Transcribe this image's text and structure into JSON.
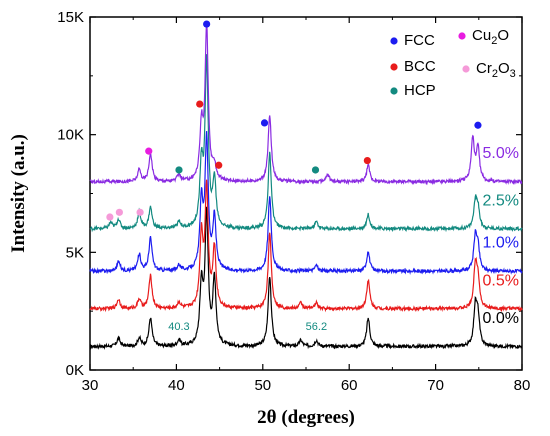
{
  "chart_data": {
    "type": "line",
    "title": "",
    "xlabel": "2θ (degrees)",
    "ylabel": "Intensity (a.u.)",
    "xlim": [
      30,
      80
    ],
    "ylim": [
      0,
      15000
    ],
    "x_ticks": [
      30,
      40,
      50,
      60,
      70,
      80
    ],
    "x_tick_labels": [
      "30",
      "40",
      "50",
      "60",
      "70",
      "80"
    ],
    "y_ticks": [
      0,
      5000,
      10000,
      15000
    ],
    "y_tick_labels": [
      "0K",
      "5K",
      "10K",
      "15K"
    ],
    "grid": false,
    "legend": {
      "placement": "top-right",
      "entries": [
        {
          "label": "FCC",
          "marker_color": "#1c1cf0"
        },
        {
          "label": "BCC",
          "marker_color": "#e81c1c"
        },
        {
          "label": "HCP",
          "marker_color": "#138a80"
        },
        {
          "label_main": "Cu",
          "label_sub": "2",
          "label_tail": "O",
          "marker_color": "#e81ce0"
        },
        {
          "label_main": "Cr",
          "label_sub": "2",
          "label_tail": "O",
          "label_sub2": "3",
          "marker_color": "#f59ad8"
        }
      ]
    },
    "series": [
      {
        "label": "0.0%",
        "color": "#000000",
        "baseline": 1000,
        "peaks": [
          [
            33.3,
            350
          ],
          [
            35.7,
            350
          ],
          [
            37.0,
            1200
          ],
          [
            40.3,
            250
          ],
          [
            42.9,
            2500
          ],
          [
            43.5,
            5500
          ],
          [
            44.4,
            2800
          ],
          [
            50.8,
            3000
          ],
          [
            54.4,
            250
          ],
          [
            56.2,
            250
          ],
          [
            62.2,
            1200
          ],
          [
            74.6,
            1600
          ],
          [
            74.9,
            1200
          ]
        ]
      },
      {
        "label": "0.5%",
        "color": "#e81c1c",
        "baseline": 2600,
        "peaks": [
          [
            33.3,
            400
          ],
          [
            35.7,
            400
          ],
          [
            37.0,
            1400
          ],
          [
            40.3,
            250
          ],
          [
            42.9,
            3000
          ],
          [
            43.5,
            5000
          ],
          [
            44.4,
            2500
          ],
          [
            50.8,
            3200
          ],
          [
            54.4,
            250
          ],
          [
            56.2,
            250
          ],
          [
            62.2,
            1200
          ],
          [
            74.6,
            1700
          ],
          [
            74.9,
            1200
          ]
        ]
      },
      {
        "label": "1.0%",
        "color": "#1c1cf0",
        "baseline": 4200,
        "peaks": [
          [
            33.3,
            400
          ],
          [
            35.7,
            700
          ],
          [
            37.0,
            1400
          ],
          [
            40.3,
            250
          ],
          [
            42.9,
            2800
          ],
          [
            43.5,
            5500
          ],
          [
            44.4,
            2200
          ],
          [
            50.8,
            3200
          ],
          [
            56.2,
            250
          ],
          [
            62.2,
            800
          ],
          [
            74.6,
            1400
          ],
          [
            74.9,
            900
          ]
        ]
      },
      {
        "label": "2.5%",
        "color": "#138a80",
        "baseline": 6000,
        "peaks": [
          [
            32.4,
            250
          ],
          [
            33.3,
            400
          ],
          [
            35.7,
            700
          ],
          [
            37.0,
            900
          ],
          [
            40.3,
            300
          ],
          [
            42.9,
            2600
          ],
          [
            43.5,
            7000
          ],
          [
            44.4,
            2000
          ],
          [
            50.8,
            3200
          ],
          [
            56.2,
            300
          ],
          [
            62.2,
            600
          ],
          [
            74.6,
            1100
          ],
          [
            74.9,
            800
          ]
        ]
      },
      {
        "label": "5.0%",
        "color": "#8a2be2",
        "baseline": 8000,
        "peaks": [
          [
            35.7,
            500
          ],
          [
            37.0,
            1200
          ],
          [
            40.3,
            300
          ],
          [
            42.9,
            2200
          ],
          [
            43.5,
            6500
          ],
          [
            44.4,
            600
          ],
          [
            50.8,
            2800
          ],
          [
            57.5,
            300
          ],
          [
            62.2,
            700
          ],
          [
            74.3,
            1800
          ],
          [
            74.9,
            1400
          ]
        ]
      }
    ],
    "phase_markers": [
      {
        "phase": "FCC",
        "x": 43.5,
        "y": 14700,
        "color": "#1c1cf0"
      },
      {
        "phase": "FCC",
        "x": 50.2,
        "y": 10500,
        "color": "#1c1cf0"
      },
      {
        "phase": "FCC",
        "x": 74.9,
        "y": 10400,
        "color": "#1c1cf0"
      },
      {
        "phase": "BCC",
        "x": 42.7,
        "y": 11300,
        "color": "#e81c1c"
      },
      {
        "phase": "BCC",
        "x": 44.9,
        "y": 8700,
        "color": "#e81c1c"
      },
      {
        "phase": "BCC",
        "x": 62.1,
        "y": 8900,
        "color": "#e81c1c"
      },
      {
        "phase": "HCP",
        "x": 40.3,
        "y": 8500,
        "color": "#138a80"
      },
      {
        "phase": "HCP",
        "x": 56.1,
        "y": 8500,
        "color": "#138a80"
      },
      {
        "phase": "Cu2O",
        "x": 36.8,
        "y": 9300,
        "color": "#e81ce0"
      },
      {
        "phase": "Cr2O3",
        "x": 32.3,
        "y": 6500,
        "color": "#f59ad8"
      },
      {
        "phase": "Cr2O3",
        "x": 33.4,
        "y": 6700,
        "color": "#f59ad8"
      },
      {
        "phase": "Cr2O3",
        "x": 35.8,
        "y": 6700,
        "color": "#f59ad8"
      }
    ],
    "annotations": [
      {
        "text": "40.3",
        "x": 40.3,
        "y": 1700,
        "color": "#138a80"
      },
      {
        "text": "56.2",
        "x": 56.2,
        "y": 1700,
        "color": "#138a80"
      }
    ]
  }
}
